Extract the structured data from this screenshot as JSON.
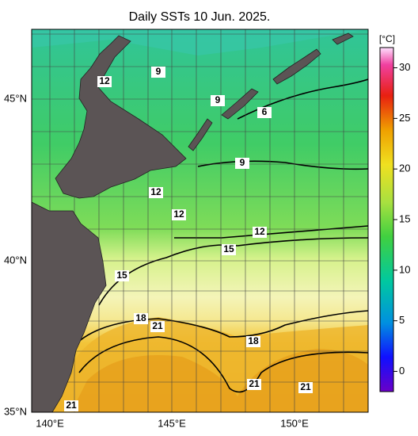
{
  "title": "Daily SSTs 10 Jun. 2025.",
  "lat_labels": [
    "45°N",
    "40°N",
    "35°N"
  ],
  "lon_labels": [
    "140°E",
    "145°E",
    "150°E"
  ],
  "colorbar": {
    "unit": "[°C]",
    "lim": [
      -2,
      32
    ],
    "ticks": [
      0,
      5,
      10,
      15,
      20,
      25,
      30
    ]
  },
  "contour_labels": [
    12,
    9,
    9,
    6,
    9,
    12,
    12,
    12,
    15,
    15,
    18,
    21,
    18,
    21,
    21,
    21
  ]
}
